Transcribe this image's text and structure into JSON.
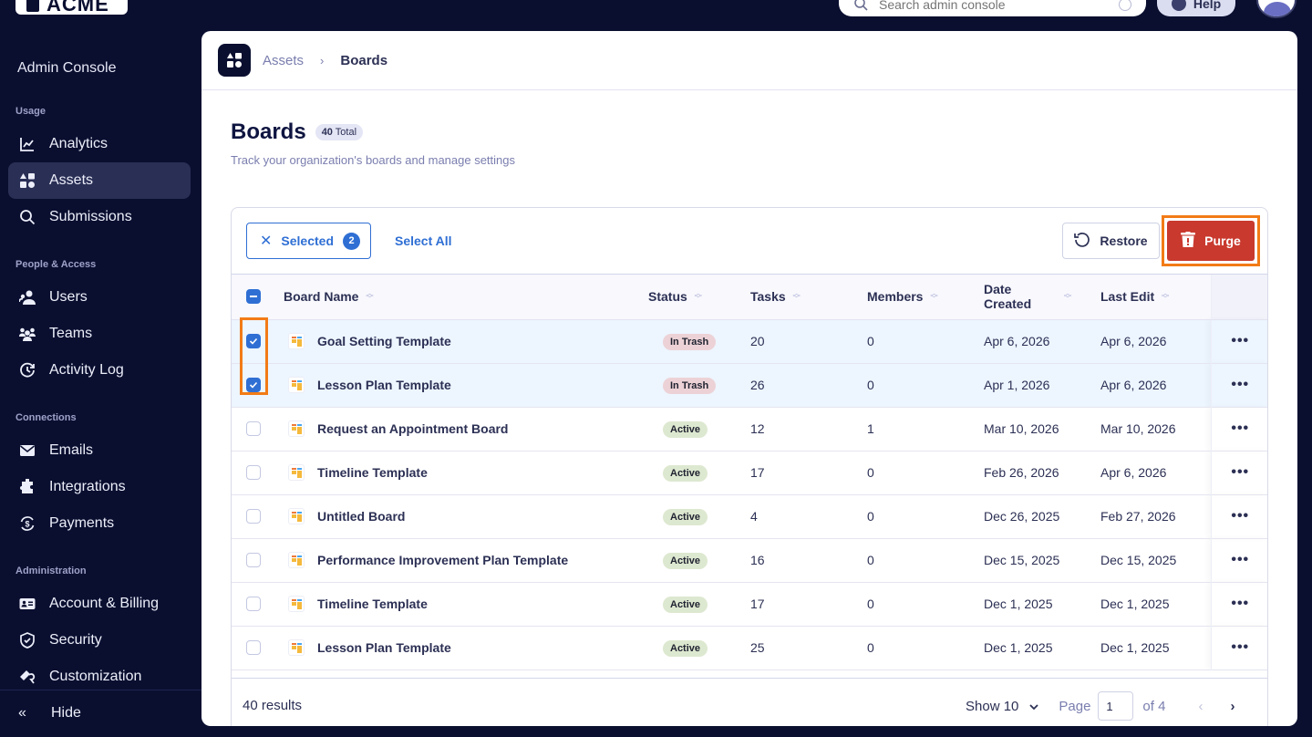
{
  "app": {
    "logo_text": "ACME",
    "search_placeholder": "Search admin console",
    "help_label": "Help"
  },
  "sidebar": {
    "title": "Admin Console",
    "sections": [
      {
        "label": "Usage",
        "items": [
          {
            "label": "Analytics",
            "icon": "chart-line-icon"
          },
          {
            "label": "Assets",
            "icon": "shapes-icon",
            "active": true
          },
          {
            "label": "Submissions",
            "icon": "search-icon"
          }
        ]
      },
      {
        "label": "People & Access",
        "items": [
          {
            "label": "Users",
            "icon": "users-icon"
          },
          {
            "label": "Teams",
            "icon": "teams-icon"
          },
          {
            "label": "Activity Log",
            "icon": "history-icon"
          }
        ]
      },
      {
        "label": "Connections",
        "items": [
          {
            "label": "Emails",
            "icon": "envelope-icon"
          },
          {
            "label": "Integrations",
            "icon": "puzzle-icon"
          },
          {
            "label": "Payments",
            "icon": "dollar-cycle-icon"
          }
        ]
      },
      {
        "label": "Administration",
        "items": [
          {
            "label": "Account & Billing",
            "icon": "id-card-icon"
          },
          {
            "label": "Security",
            "icon": "shield-check-icon"
          },
          {
            "label": "Customization",
            "icon": "paint-brush-icon"
          }
        ]
      }
    ],
    "hide_label": "Hide"
  },
  "breadcrumb": {
    "parent": "Assets",
    "separator": "›",
    "current": "Boards"
  },
  "page": {
    "title": "Boards",
    "total_count": "40",
    "total_label": "Total",
    "subtitle": "Track your organization's boards and manage settings"
  },
  "toolbar": {
    "selected_label": "Selected",
    "selected_count": "2",
    "select_all_label": "Select All",
    "restore_label": "Restore",
    "purge_label": "Purge",
    "colors": {
      "accent": "#2f6fd4",
      "purge": "#c9392e",
      "highlight": "#f27b16"
    }
  },
  "table": {
    "columns": [
      "Board Name",
      "Status",
      "Tasks",
      "Members",
      "Date Created",
      "Last Edit"
    ],
    "date_created_line1": "Date",
    "date_created_line2": "Created",
    "rows": [
      {
        "name": "Goal Setting Template",
        "status": "In Trash",
        "tasks": "20",
        "members": "0",
        "created": "Apr 6, 2026",
        "edited": "Apr 6, 2026",
        "selected": true
      },
      {
        "name": "Lesson Plan Template",
        "status": "In Trash",
        "tasks": "26",
        "members": "0",
        "created": "Apr 1, 2026",
        "edited": "Apr 6, 2026",
        "selected": true
      },
      {
        "name": "Request an Appointment Board",
        "status": "Active",
        "tasks": "12",
        "members": "1",
        "created": "Mar 10, 2026",
        "edited": "Mar 10, 2026",
        "selected": false
      },
      {
        "name": "Timeline Template",
        "status": "Active",
        "tasks": "17",
        "members": "0",
        "created": "Feb 26, 2026",
        "edited": "Apr 6, 2026",
        "selected": false
      },
      {
        "name": "Untitled Board",
        "status": "Active",
        "tasks": "4",
        "members": "0",
        "created": "Dec 26, 2025",
        "edited": "Feb 27, 2026",
        "selected": false
      },
      {
        "name": "Performance Improvement Plan Template",
        "status": "Active",
        "tasks": "16",
        "members": "0",
        "created": "Dec 15, 2025",
        "edited": "Dec 15, 2025",
        "selected": false
      },
      {
        "name": "Timeline Template",
        "status": "Active",
        "tasks": "17",
        "members": "0",
        "created": "Dec 1, 2025",
        "edited": "Dec 1, 2025",
        "selected": false
      },
      {
        "name": "Lesson Plan Template",
        "status": "Active",
        "tasks": "25",
        "members": "0",
        "created": "Dec 1, 2025",
        "edited": "Dec 1, 2025",
        "selected": false
      }
    ],
    "row_action_label": "•••"
  },
  "footer": {
    "results_text": "40 results",
    "show_label": "Show 10",
    "page_label": "Page",
    "page_value": "1",
    "of_label": "of 4",
    "prev_icon": "‹",
    "next_icon": "›"
  }
}
